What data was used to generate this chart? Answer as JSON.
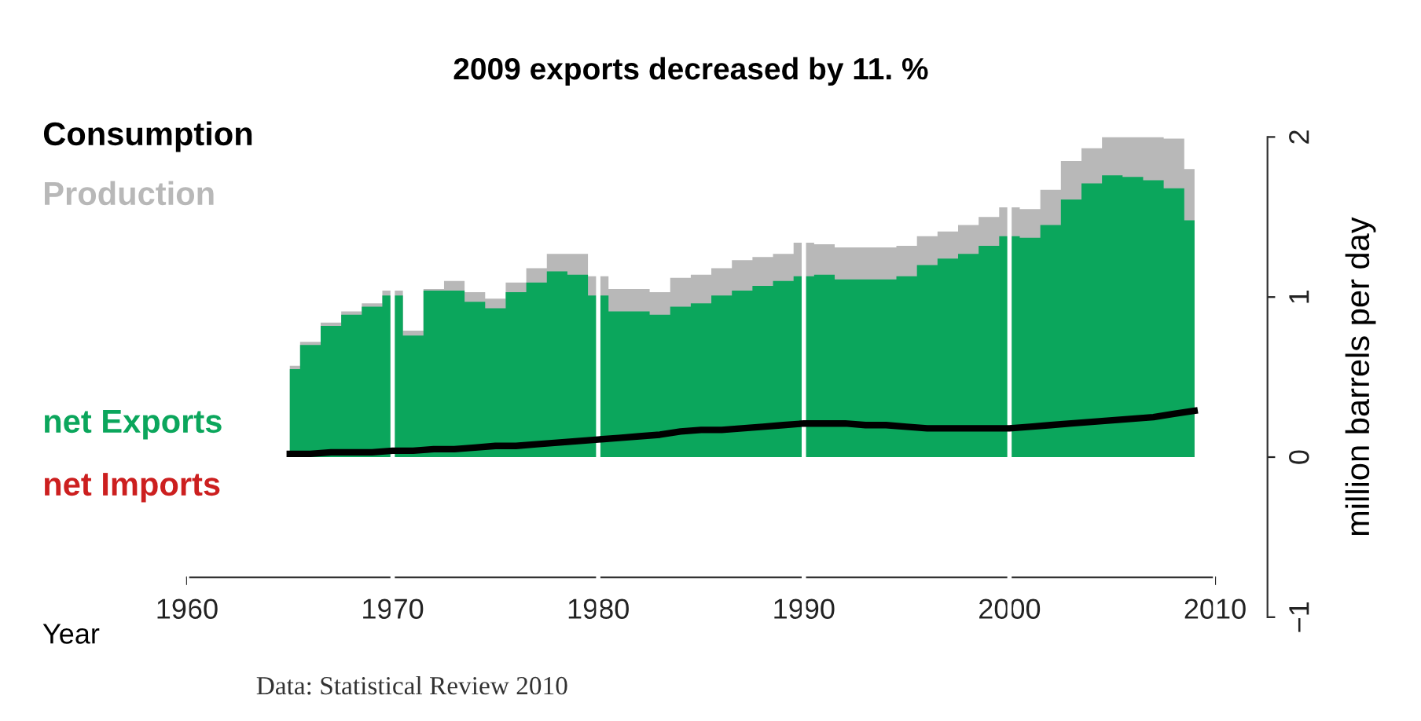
{
  "chart_data": {
    "type": "area",
    "title": "2009 exports decreased by 11. %",
    "xlabel": "Year",
    "ylabel": "million barrels per day",
    "annotations": [
      "Data: Statistical Review 2010"
    ],
    "x": [
      1965,
      1966,
      1967,
      1968,
      1969,
      1970,
      1971,
      1972,
      1973,
      1974,
      1975,
      1976,
      1977,
      1978,
      1979,
      1980,
      1981,
      1982,
      1983,
      1984,
      1985,
      1986,
      1987,
      1988,
      1989,
      1990,
      1991,
      1992,
      1993,
      1994,
      1995,
      1996,
      1997,
      1998,
      1999,
      2000,
      2001,
      2002,
      2003,
      2004,
      2005,
      2006,
      2007,
      2008,
      2009
    ],
    "series": [
      {
        "name": "Consumption",
        "type": "line",
        "color": "#000000",
        "values": [
          0.02,
          0.02,
          0.03,
          0.03,
          0.03,
          0.04,
          0.04,
          0.05,
          0.05,
          0.06,
          0.07,
          0.07,
          0.08,
          0.09,
          0.1,
          0.11,
          0.12,
          0.13,
          0.14,
          0.16,
          0.17,
          0.17,
          0.18,
          0.19,
          0.2,
          0.21,
          0.21,
          0.21,
          0.2,
          0.2,
          0.19,
          0.18,
          0.18,
          0.18,
          0.18,
          0.18,
          0.19,
          0.2,
          0.21,
          0.22,
          0.23,
          0.24,
          0.25,
          0.27,
          0.29
        ]
      },
      {
        "name": "Production",
        "color": "#b8b8b8",
        "values": [
          0.57,
          0.72,
          0.84,
          0.91,
          0.96,
          1.04,
          0.79,
          1.05,
          1.1,
          1.03,
          0.99,
          1.09,
          1.18,
          1.27,
          1.27,
          1.13,
          1.05,
          1.05,
          1.03,
          1.12,
          1.14,
          1.18,
          1.23,
          1.25,
          1.27,
          1.34,
          1.33,
          1.31,
          1.31,
          1.31,
          1.32,
          1.38,
          1.41,
          1.45,
          1.5,
          1.56,
          1.55,
          1.67,
          1.85,
          1.93,
          2.0,
          2.0,
          2.0,
          1.99,
          1.8
        ]
      },
      {
        "name": "net Exports",
        "color": "#0ba65c",
        "values": [
          0.55,
          0.7,
          0.82,
          0.89,
          0.94,
          1.01,
          0.76,
          1.04,
          1.04,
          0.97,
          0.93,
          1.03,
          1.09,
          1.16,
          1.14,
          1.01,
          0.91,
          0.91,
          0.89,
          0.94,
          0.96,
          1.01,
          1.04,
          1.07,
          1.1,
          1.13,
          1.14,
          1.11,
          1.11,
          1.11,
          1.13,
          1.2,
          1.24,
          1.27,
          1.32,
          1.38,
          1.37,
          1.45,
          1.61,
          1.71,
          1.76,
          1.75,
          1.73,
          1.68,
          1.48
        ]
      },
      {
        "name": "net Imports",
        "color": "#cc1f1f",
        "values": [
          null,
          null,
          null,
          null,
          null,
          null,
          null,
          null,
          null,
          null,
          null,
          null,
          null,
          null,
          null,
          null,
          null,
          null,
          null,
          null,
          null,
          null,
          null,
          null,
          null,
          null,
          null,
          null,
          null,
          null,
          null,
          null,
          null,
          null,
          null,
          null,
          null,
          null,
          null,
          null,
          null,
          null,
          null,
          null,
          null
        ]
      }
    ],
    "xlim": [
      1960,
      2010
    ],
    "xticks": [
      1960,
      1970,
      1980,
      1990,
      2000,
      2010
    ],
    "ylim": [
      -1,
      2
    ],
    "yticks": [
      -1,
      0,
      1,
      2
    ],
    "grid": "x",
    "legend": "left"
  }
}
